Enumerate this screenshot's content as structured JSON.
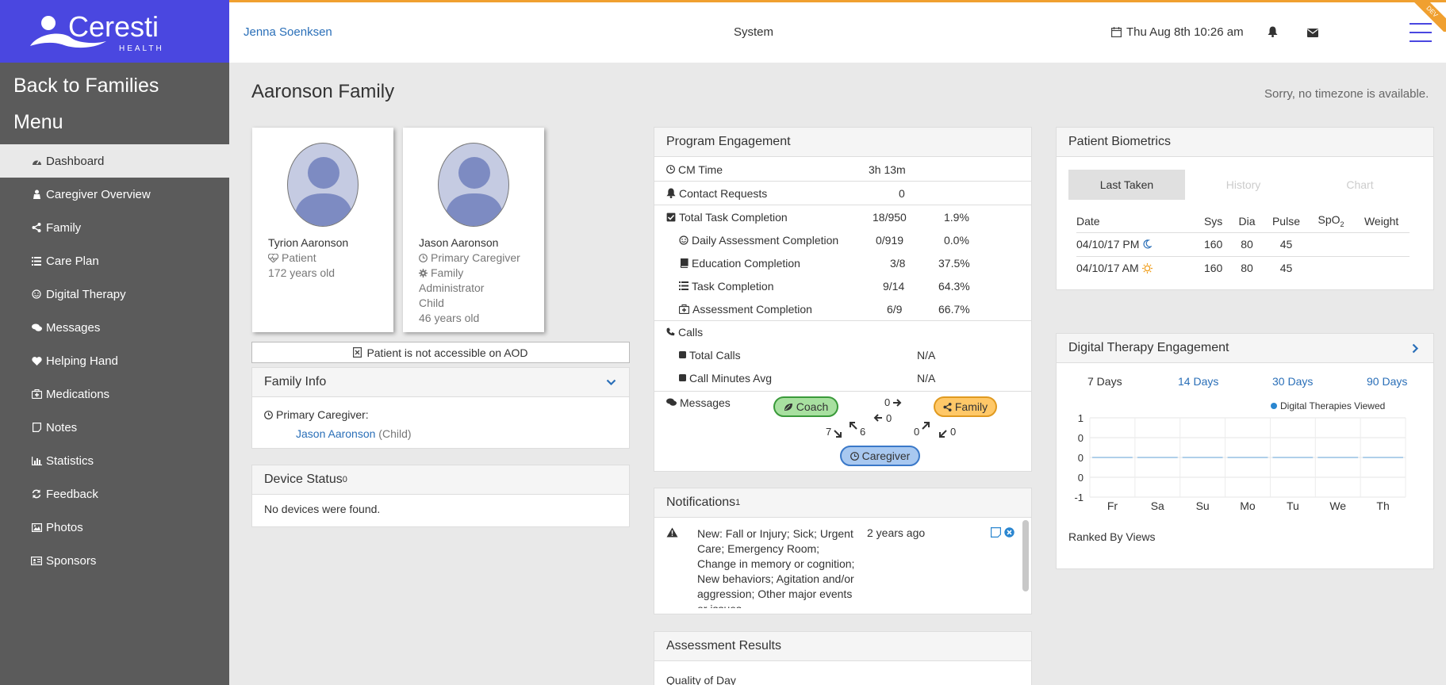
{
  "brand": {
    "name": "Ceresti",
    "sub": "HEALTH",
    "color": "#4a47e0"
  },
  "sidebar": {
    "back_label": "Back to Families",
    "menu_label": "Menu",
    "items": [
      {
        "label": "Dashboard",
        "icon": "dashboard-icon"
      },
      {
        "label": "Caregiver Overview",
        "icon": "caregiver-icon"
      },
      {
        "label": "Family",
        "icon": "share-icon"
      },
      {
        "label": "Care Plan",
        "icon": "list-icon"
      },
      {
        "label": "Digital Therapy",
        "icon": "smile-icon"
      },
      {
        "label": "Messages",
        "icon": "comments-icon"
      },
      {
        "label": "Helping Hand",
        "icon": "heart-icon"
      },
      {
        "label": "Medications",
        "icon": "medkit-icon"
      },
      {
        "label": "Notes",
        "icon": "note-icon"
      },
      {
        "label": "Statistics",
        "icon": "bar-chart-icon"
      },
      {
        "label": "Feedback",
        "icon": "refresh-icon"
      },
      {
        "label": "Photos",
        "icon": "image-icon"
      },
      {
        "label": "Sponsors",
        "icon": "id-card-icon"
      }
    ]
  },
  "header": {
    "user": "Jenna Soenksen",
    "system": "System",
    "date": "Thu Aug 8th 10:26 am",
    "ribbon": "DEV"
  },
  "page": {
    "title": "Aaronson Family",
    "timezone_msg": "Sorry, no timezone is available."
  },
  "persons": [
    {
      "name": "Tyrion Aaronson",
      "role": "Patient",
      "age": "172 years old"
    },
    {
      "name": "Jason Aaronson",
      "role": "Primary Caregiver",
      "role2": "Family",
      "role3": "Administrator",
      "relation": "Child",
      "age": "46 years old"
    }
  ],
  "aod_msg": "Patient is not accessible on AOD",
  "family_info": {
    "title": "Family Info",
    "primary_label": "Primary Caregiver:",
    "caregiver_name": "Jason Aaronson",
    "caregiver_relation": "(Child)"
  },
  "device_status": {
    "title": "Device Status",
    "count": "0",
    "empty_msg": "No devices were found."
  },
  "program_engagement": {
    "title": "Program Engagement",
    "cm_time": {
      "label": "CM Time",
      "value": "3h 13m"
    },
    "contact_requests": {
      "label": "Contact Requests",
      "value": "0"
    },
    "total_task": {
      "label": "Total Task Completion",
      "value": "18/950",
      "pct": "1.9%"
    },
    "daily_assessment": {
      "label": "Daily Assessment Completion",
      "value": "0/919",
      "pct": "0.0%"
    },
    "education": {
      "label": "Education Completion",
      "value": "3/8",
      "pct": "37.5%"
    },
    "task": {
      "label": "Task Completion",
      "value": "9/14",
      "pct": "64.3%"
    },
    "assessment": {
      "label": "Assessment Completion",
      "value": "6/9",
      "pct": "66.7%"
    },
    "calls": {
      "label": "Calls"
    },
    "total_calls": {
      "label": "Total Calls",
      "value": "N/A"
    },
    "call_minutes": {
      "label": "Call Minutes Avg",
      "value": "N/A"
    },
    "messages": {
      "label": "Messages",
      "coach": "Coach",
      "family": "Family",
      "caregiver": "Caregiver",
      "coach_to_family": "0",
      "family_to_coach": "0",
      "caregiver_to_coach": "7",
      "coach_to_caregiver": "6",
      "caregiver_to_family": "0",
      "family_to_caregiver": "0"
    }
  },
  "notifications": {
    "title": "Notifications",
    "count": "1",
    "items": [
      {
        "text": "New: Fall or Injury; Sick; Urgent Care; Emergency Room; Change in memory or cognition; New behaviors; Agitation and/or aggression; Other major events or issues",
        "time": "2 years ago"
      }
    ]
  },
  "assessment_results": {
    "title": "Assessment Results",
    "first_label": "Quality of Day"
  },
  "biometrics": {
    "title": "Patient Biometrics",
    "tabs": [
      "Last Taken",
      "History",
      "Chart"
    ],
    "columns": [
      "Date",
      "Sys",
      "Dia",
      "Pulse",
      "SpO",
      "Weight"
    ],
    "spo_sub": "2",
    "rows": [
      {
        "date": "04/10/17 PM",
        "icon": "moon-icon",
        "sys": "160",
        "dia": "80",
        "pulse": "45",
        "spo2": "",
        "weight": ""
      },
      {
        "date": "04/10/17 AM",
        "icon": "sun-icon",
        "sys": "160",
        "dia": "80",
        "pulse": "45",
        "spo2": "",
        "weight": ""
      }
    ]
  },
  "digital_therapy": {
    "title": "Digital Therapy Engagement",
    "tabs": [
      "7 Days",
      "14 Days",
      "30 Days",
      "90 Days"
    ],
    "footer": "Ranked By Views",
    "chart_data": {
      "type": "line",
      "categories": [
        "Fr",
        "Sa",
        "Su",
        "Mo",
        "Tu",
        "We",
        "Th"
      ],
      "series": [
        {
          "name": "Digital Therapies Viewed",
          "values": [
            0,
            0,
            0,
            0,
            0,
            0,
            0
          ],
          "color": "#2a86d0"
        }
      ],
      "y_tick_labels": [
        "1",
        "0",
        "0",
        "0",
        "-1"
      ],
      "ylim": [
        -1,
        1
      ],
      "grid": true,
      "legend": "top-right"
    }
  }
}
